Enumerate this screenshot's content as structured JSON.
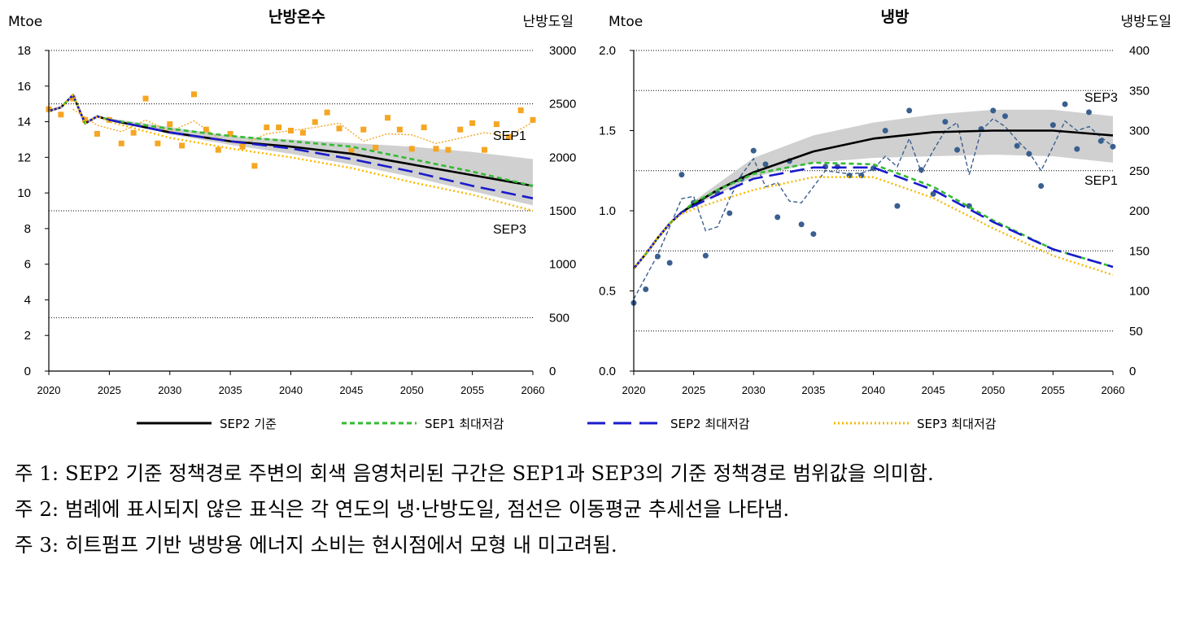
{
  "chart_data": [
    {
      "type": "line",
      "title": "난방온수",
      "y_left_unit": "Mtoe",
      "y_right_unit": "난방도일",
      "x_ticks": [
        "2020",
        "2025",
        "2030",
        "2035",
        "2040",
        "2045",
        "2050",
        "2055",
        "2060"
      ],
      "y_left_ticks": [
        "0",
        "2",
        "4",
        "6",
        "8",
        "10",
        "12",
        "14",
        "16",
        "18"
      ],
      "y_right_ticks": [
        "0",
        "500",
        "1000",
        "1500",
        "2000",
        "2500",
        "3000"
      ],
      "ylim_left": [
        0,
        18
      ],
      "ylim_right": [
        0,
        3000
      ],
      "xlim": [
        2020,
        2060
      ],
      "gridlines_right": [
        500,
        1500,
        2500,
        3000
      ],
      "band": {
        "x": [
          2024,
          2030,
          2035,
          2040,
          2045,
          2050,
          2055,
          2060
        ],
        "upper": [
          14.3,
          13.7,
          13.2,
          13.0,
          12.8,
          12.6,
          12.3,
          11.9
        ],
        "lower": [
          14.3,
          13.3,
          12.7,
          12.2,
          11.6,
          10.9,
          10.1,
          9.3
        ]
      },
      "series": [
        {
          "name": "SEP2 기준",
          "x": [
            2020,
            2021,
            2022,
            2023,
            2024,
            2025,
            2030,
            2035,
            2040,
            2045,
            2050,
            2055,
            2060
          ],
          "y": [
            14.6,
            14.8,
            15.5,
            13.9,
            14.3,
            14.1,
            13.4,
            12.9,
            12.6,
            12.2,
            11.6,
            11.0,
            10.4
          ]
        },
        {
          "name": "SEP1 최대저감",
          "x": [
            2020,
            2021,
            2022,
            2023,
            2024,
            2025,
            2030,
            2035,
            2040,
            2045,
            2050,
            2055,
            2060
          ],
          "y": [
            14.6,
            14.8,
            15.5,
            13.9,
            14.3,
            14.1,
            13.6,
            13.2,
            12.9,
            12.6,
            11.9,
            11.2,
            10.4
          ]
        },
        {
          "name": "SEP2 최대저감",
          "x": [
            2020,
            2021,
            2022,
            2023,
            2024,
            2025,
            2030,
            2035,
            2040,
            2045,
            2050,
            2055,
            2060
          ],
          "y": [
            14.6,
            14.8,
            15.5,
            13.9,
            14.3,
            14.1,
            13.4,
            12.9,
            12.5,
            11.9,
            11.2,
            10.4,
            9.7
          ]
        },
        {
          "name": "SEP3 최대저감",
          "x": [
            2020,
            2021,
            2022,
            2023,
            2024,
            2025,
            2030,
            2035,
            2040,
            2045,
            2050,
            2055,
            2060
          ],
          "y": [
            14.6,
            14.8,
            15.5,
            13.9,
            14.3,
            14.0,
            13.1,
            12.5,
            12.0,
            11.4,
            10.6,
            9.9,
            9.0
          ]
        }
      ],
      "markers": {
        "axis": "right",
        "x": [
          2020,
          2021,
          2022,
          2023,
          2024,
          2025,
          2026,
          2027,
          2028,
          2029,
          2030,
          2031,
          2032,
          2033,
          2034,
          2035,
          2036,
          2037,
          2038,
          2039,
          2040,
          2041,
          2042,
          2043,
          2044,
          2045,
          2046,
          2047,
          2048,
          2049,
          2050,
          2051,
          2052,
          2053,
          2054,
          2055,
          2056,
          2057,
          2058,
          2059,
          2060
        ],
        "y": [
          2450,
          2400,
          2550,
          2350,
          2220,
          2350,
          2130,
          2230,
          2550,
          2130,
          2310,
          2110,
          2590,
          2260,
          2070,
          2220,
          2100,
          1920,
          2280,
          2280,
          2250,
          2230,
          2330,
          2420,
          2270,
          2060,
          2260,
          2090,
          2370,
          2260,
          2080,
          2280,
          2080,
          2070,
          2260,
          2320,
          2070,
          2310,
          2190,
          2440,
          2350
        ]
      },
      "moving_average": {
        "axis": "right",
        "x": [
          2022,
          2024,
          2026,
          2028,
          2030,
          2032,
          2034,
          2036,
          2038,
          2040,
          2042,
          2044,
          2046,
          2048,
          2050,
          2052,
          2054,
          2056,
          2058,
          2060
        ],
        "y": [
          2450,
          2300,
          2240,
          2350,
          2240,
          2340,
          2180,
          2120,
          2220,
          2250,
          2280,
          2320,
          2150,
          2220,
          2210,
          2130,
          2180,
          2230,
          2200,
          2330
        ]
      },
      "annotations": [
        "SEP1",
        "SEP3"
      ]
    },
    {
      "type": "line",
      "title": "냉방",
      "y_left_unit": "Mtoe",
      "y_right_unit": "냉방도일",
      "x_ticks": [
        "2020",
        "2025",
        "2030",
        "2035",
        "2040",
        "2045",
        "2050",
        "2055",
        "2060"
      ],
      "y_left_ticks": [
        "0.0",
        "0.5",
        "1.0",
        "1.5",
        "2.0"
      ],
      "y_right_ticks": [
        "0",
        "50",
        "100",
        "150",
        "200",
        "250",
        "300",
        "350",
        "400"
      ],
      "ylim_left": [
        0,
        2
      ],
      "ylim_right": [
        0,
        400
      ],
      "xlim": [
        2020,
        2060
      ],
      "gridlines_right": [
        50,
        150,
        250,
        350,
        400
      ],
      "band": {
        "x": [
          2024,
          2025,
          2030,
          2035,
          2040,
          2045,
          2050,
          2055,
          2060
        ],
        "upper": [
          0.97,
          1.06,
          1.33,
          1.47,
          1.55,
          1.6,
          1.63,
          1.63,
          1.59
        ],
        "lower": [
          0.97,
          1.03,
          1.21,
          1.3,
          1.33,
          1.34,
          1.35,
          1.34,
          1.3
        ]
      },
      "series": [
        {
          "name": "SEP2 기준",
          "x": [
            2020,
            2021,
            2022,
            2023,
            2024,
            2025,
            2027,
            2030,
            2035,
            2040,
            2045,
            2050,
            2055,
            2060
          ],
          "y": [
            0.64,
            0.73,
            0.83,
            0.92,
            0.99,
            1.04,
            1.13,
            1.24,
            1.37,
            1.45,
            1.49,
            1.5,
            1.5,
            1.47
          ]
        },
        {
          "name": "SEP1 최대저감",
          "x": [
            2020,
            2021,
            2022,
            2023,
            2024,
            2025,
            2027,
            2030,
            2035,
            2040,
            2045,
            2050,
            2055,
            2060
          ],
          "y": [
            0.64,
            0.73,
            0.83,
            0.92,
            0.99,
            1.05,
            1.13,
            1.23,
            1.3,
            1.29,
            1.15,
            0.94,
            0.76,
            0.65
          ]
        },
        {
          "name": "SEP2 최대저감",
          "x": [
            2020,
            2021,
            2022,
            2023,
            2024,
            2025,
            2027,
            2030,
            2035,
            2040,
            2045,
            2050,
            2055,
            2060
          ],
          "y": [
            0.64,
            0.73,
            0.83,
            0.92,
            0.99,
            1.03,
            1.1,
            1.2,
            1.27,
            1.27,
            1.13,
            0.93,
            0.76,
            0.65
          ]
        },
        {
          "name": "SEP3 최대저감",
          "x": [
            2020,
            2021,
            2022,
            2023,
            2024,
            2025,
            2027,
            2030,
            2035,
            2040,
            2045,
            2050,
            2055,
            2060
          ],
          "y": [
            0.64,
            0.73,
            0.83,
            0.92,
            0.98,
            1.01,
            1.06,
            1.13,
            1.21,
            1.21,
            1.08,
            0.89,
            0.72,
            0.6
          ]
        }
      ],
      "markers": {
        "axis": "right",
        "x": [
          2020,
          2021,
          2022,
          2023,
          2024,
          2025,
          2026,
          2027,
          2028,
          2029,
          2030,
          2031,
          2032,
          2033,
          2034,
          2035,
          2036,
          2037,
          2038,
          2039,
          2040,
          2041,
          2042,
          2043,
          2044,
          2045,
          2046,
          2047,
          2048,
          2049,
          2050,
          2051,
          2052,
          2053,
          2054,
          2055,
          2056,
          2057,
          2058,
          2059,
          2060
        ],
        "y": [
          85,
          102,
          143,
          135,
          245,
          210,
          144,
          222,
          197,
          240,
          275,
          258,
          192,
          262,
          183,
          171,
          255,
          255,
          244,
          244,
          253,
          300,
          206,
          325,
          251,
          221,
          311,
          276,
          206,
          302,
          325,
          318,
          281,
          271,
          231,
          307,
          333,
          277,
          323,
          287,
          280
        ]
      },
      "moving_average": {
        "axis": "right",
        "x": [
          2020,
          2022,
          2024,
          2025,
          2026,
          2027,
          2028,
          2029,
          2030,
          2031,
          2032,
          2033,
          2034,
          2035,
          2036,
          2037,
          2038,
          2039,
          2040,
          2041,
          2042,
          2043,
          2044,
          2045,
          2046,
          2047,
          2048,
          2049,
          2050,
          2051,
          2052,
          2053,
          2054,
          2055,
          2056,
          2057,
          2058,
          2059,
          2060
        ],
        "y": [
          90,
          145,
          215,
          218,
          175,
          180,
          215,
          245,
          265,
          230,
          235,
          212,
          210,
          230,
          250,
          248,
          246,
          247,
          252,
          268,
          255,
          290,
          248,
          275,
          300,
          310,
          245,
          300,
          315,
          305,
          288,
          273,
          250,
          280,
          312,
          300,
          305,
          292,
          280
        ]
      },
      "annotations": [
        "SEP3",
        "SEP1"
      ]
    }
  ],
  "legend": [
    {
      "label": "SEP2 기준",
      "color": "#000000",
      "style": "solid"
    },
    {
      "label": "SEP1 최대저감",
      "color": "#33bb33",
      "style": "dashed"
    },
    {
      "label": "SEP2 최대저감",
      "color": "#1a1acc",
      "style": "long-dash"
    },
    {
      "label": "SEP3 최대저감",
      "color": "#f5b800",
      "style": "dotted"
    }
  ],
  "colors": {
    "sep2_base": "#000000",
    "sep1_max": "#33bb33",
    "sep2_max": "#1a1acc",
    "sep3_max": "#f5b800",
    "band": "#d0d0d0",
    "heating_marker": "#f5a623",
    "cooling_marker": "#3a5f8f"
  },
  "notes": [
    {
      "label": "주 1: ",
      "text": "SEP2 기준 정책경로 주변의 회색 음영처리된 구간은 SEP1과 SEP3의 기준 정책경로 범위값을 의미함."
    },
    {
      "label": "주 2: ",
      "text": "범례에 표시되지 않은 표식은 각 연도의 냉·난방도일, 점선은 이동평균 추세선을 나타냄."
    },
    {
      "label": "주 3: ",
      "text": "히트펌프 기반 냉방용 에너지 소비는 현시점에서 모형 내 미고려됨."
    }
  ]
}
